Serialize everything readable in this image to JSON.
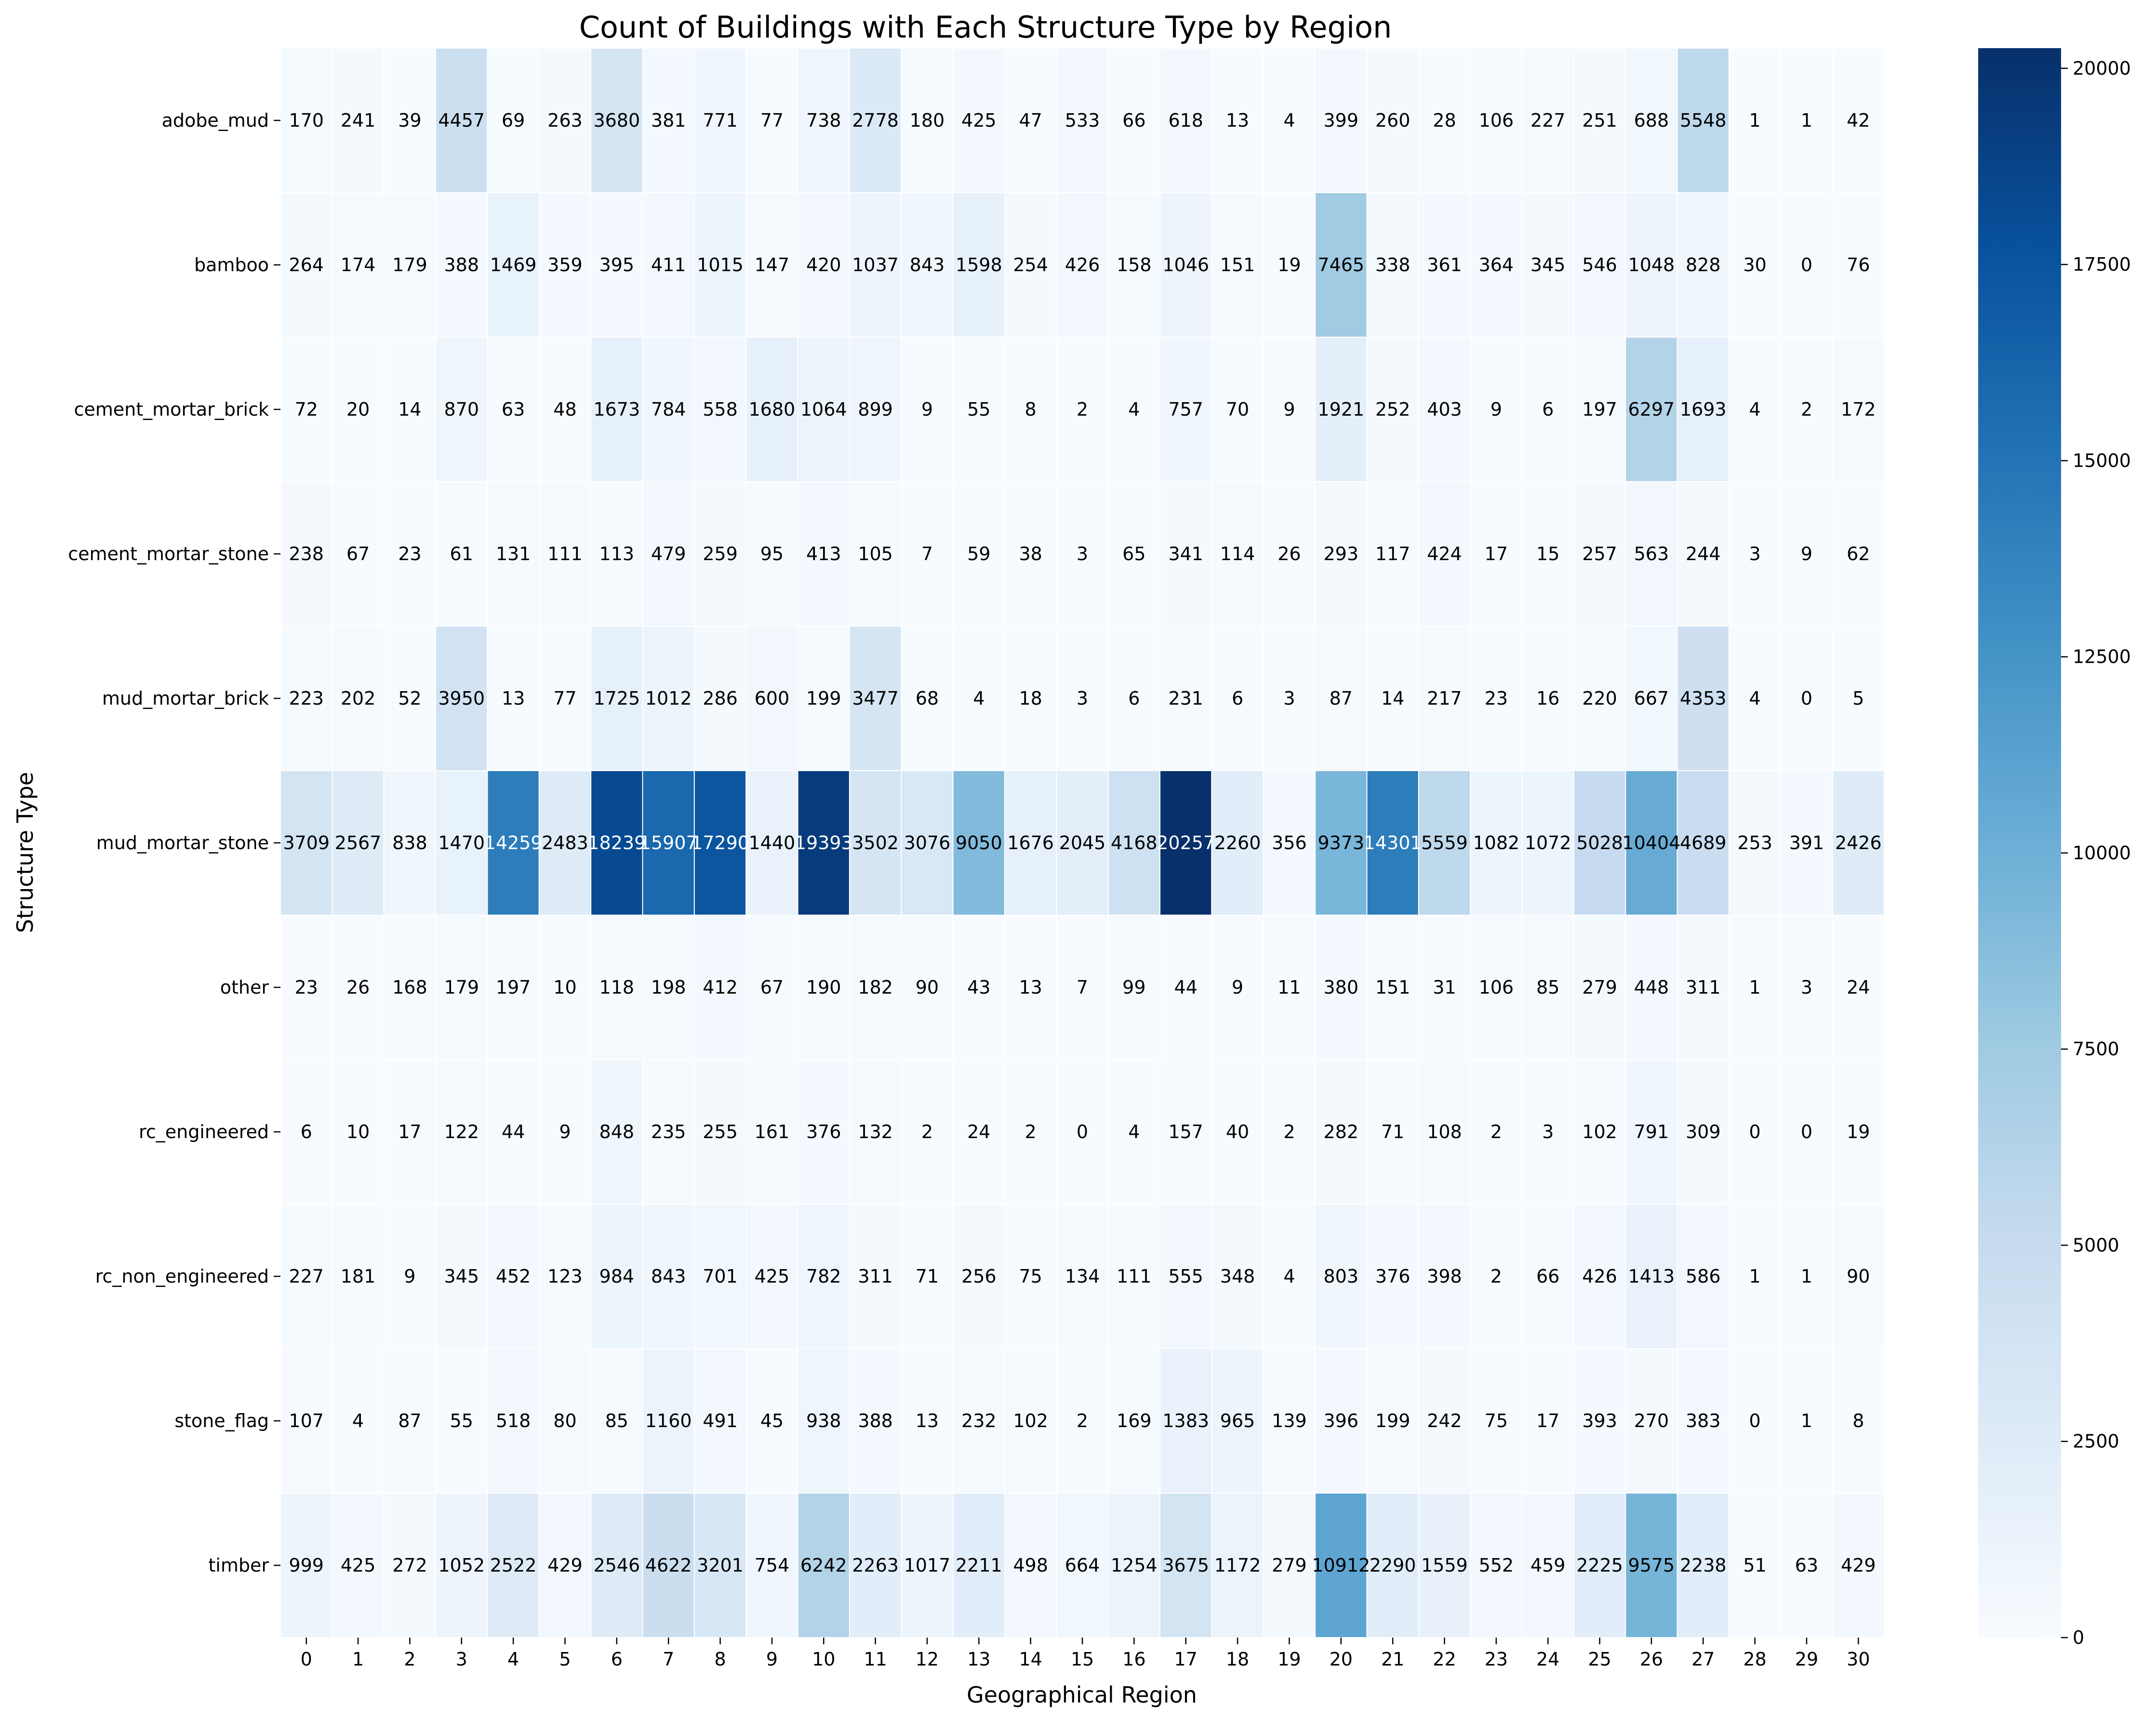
{
  "chart_data": {
    "type": "heatmap",
    "title": "Count of Buildings with Each Structure Type by Region",
    "xlabel": "Geographical Region",
    "ylabel": "Structure Type",
    "colormap": "Blues",
    "colors": {
      "cmap_stops": [
        "#f7fbff",
        "#deebf7",
        "#c6dbef",
        "#9ecae1",
        "#6baed6",
        "#4292c6",
        "#2171b5",
        "#08519c",
        "#08306b"
      ],
      "text_light": "#ffffff",
      "text_dark": "#000000",
      "cell_border": "#ffffff"
    },
    "vmin": 0,
    "vmax": 20257,
    "colorbar_ticks": [
      "0",
      "2500",
      "5000",
      "7500",
      "10000",
      "12500",
      "15000",
      "17500",
      "20000"
    ],
    "colorbar_tick_values": [
      0,
      2500,
      5000,
      7500,
      10000,
      12500,
      15000,
      17500,
      20000
    ],
    "x_categories": [
      "0",
      "1",
      "2",
      "3",
      "4",
      "5",
      "6",
      "7",
      "8",
      "9",
      "10",
      "11",
      "12",
      "13",
      "14",
      "15",
      "16",
      "17",
      "18",
      "19",
      "20",
      "21",
      "22",
      "23",
      "24",
      "25",
      "26",
      "27",
      "28",
      "29",
      "30"
    ],
    "y_categories": [
      "adobe_mud",
      "bamboo",
      "cement_mortar_brick",
      "cement_mortar_stone",
      "mud_mortar_brick",
      "mud_mortar_stone",
      "other",
      "rc_engineered",
      "rc_non_engineered",
      "stone_flag",
      "timber"
    ],
    "values": [
      [
        170,
        241,
        39,
        4457,
        69,
        263,
        3680,
        381,
        771,
        77,
        738,
        2778,
        180,
        425,
        47,
        533,
        66,
        618,
        13,
        4,
        399,
        260,
        28,
        106,
        227,
        251,
        688,
        5548,
        1,
        1,
        42
      ],
      [
        264,
        174,
        179,
        388,
        1469,
        359,
        395,
        411,
        1015,
        147,
        420,
        1037,
        843,
        1598,
        254,
        426,
        158,
        1046,
        151,
        19,
        7465,
        338,
        361,
        364,
        345,
        546,
        1048,
        828,
        30,
        0,
        76
      ],
      [
        72,
        20,
        14,
        870,
        63,
        48,
        1673,
        784,
        558,
        1680,
        1064,
        899,
        9,
        55,
        8,
        2,
        4,
        757,
        70,
        9,
        1921,
        252,
        403,
        9,
        6,
        197,
        6297,
        1693,
        4,
        2,
        172
      ],
      [
        238,
        67,
        23,
        61,
        131,
        111,
        113,
        479,
        259,
        95,
        413,
        105,
        7,
        59,
        38,
        3,
        65,
        341,
        114,
        26,
        293,
        117,
        424,
        17,
        15,
        257,
        563,
        244,
        3,
        9,
        62
      ],
      [
        223,
        202,
        52,
        3950,
        13,
        77,
        1725,
        1012,
        286,
        600,
        199,
        3477,
        68,
        4,
        18,
        3,
        6,
        231,
        6,
        3,
        87,
        14,
        217,
        23,
        16,
        220,
        667,
        4353,
        4,
        0,
        5
      ],
      [
        3709,
        2567,
        838,
        1470,
        14259,
        2483,
        18239,
        15907,
        17290,
        1440,
        19393,
        3502,
        3076,
        9050,
        1676,
        2045,
        4168,
        20257,
        2260,
        356,
        9373,
        14301,
        5559,
        1082,
        1072,
        5028,
        10404,
        4689,
        253,
        391,
        2426
      ],
      [
        23,
        26,
        168,
        179,
        197,
        10,
        118,
        198,
        412,
        67,
        190,
        182,
        90,
        43,
        13,
        7,
        99,
        44,
        9,
        11,
        380,
        151,
        31,
        106,
        85,
        279,
        448,
        311,
        1,
        3,
        24
      ],
      [
        6,
        10,
        17,
        122,
        44,
        9,
        848,
        235,
        255,
        161,
        376,
        132,
        2,
        24,
        2,
        0,
        4,
        157,
        40,
        2,
        282,
        71,
        108,
        2,
        3,
        102,
        791,
        309,
        0,
        0,
        19
      ],
      [
        227,
        181,
        9,
        345,
        452,
        123,
        984,
        843,
        701,
        425,
        782,
        311,
        71,
        256,
        75,
        134,
        111,
        555,
        348,
        4,
        803,
        376,
        398,
        2,
        66,
        426,
        1413,
        586,
        1,
        1,
        90
      ],
      [
        107,
        4,
        87,
        55,
        518,
        80,
        85,
        1160,
        491,
        45,
        938,
        388,
        13,
        232,
        102,
        2,
        169,
        1383,
        965,
        139,
        396,
        199,
        242,
        75,
        17,
        393,
        270,
        383,
        0,
        1,
        8
      ],
      [
        999,
        425,
        272,
        1052,
        2522,
        429,
        2546,
        4622,
        3201,
        754,
        6242,
        2263,
        1017,
        2211,
        498,
        664,
        1254,
        3675,
        1172,
        279,
        10912,
        2290,
        1559,
        552,
        459,
        2225,
        9575,
        2238,
        51,
        63,
        429
      ]
    ]
  }
}
